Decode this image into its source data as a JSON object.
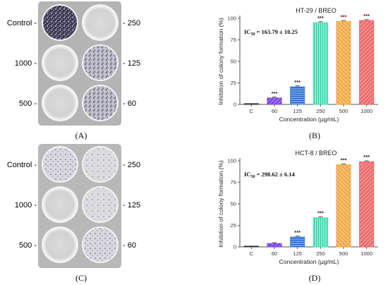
{
  "panels": {
    "A": {
      "caption": "(A)",
      "left_labels": [
        "Control -",
        "1000 -",
        "500 -"
      ],
      "right_labels": [
        "- 250",
        "- 125",
        "- 60"
      ]
    },
    "C": {
      "caption": "(C)",
      "left_labels": [
        "Control -",
        "1000 -",
        "500 -"
      ],
      "right_labels": [
        "- 250",
        "- 125",
        "- 60"
      ]
    }
  },
  "chart_data": [
    {
      "panel": "B",
      "caption": "(B)",
      "type": "bar",
      "title": "HT-29 / BREO",
      "annotation": "IC50 = 163.79 ± 10.25",
      "annotation_sub": "50",
      "annotation_rest": " = 163.79 ± 10.25",
      "xlabel": "Concentration (µg/mL)",
      "ylabel": "Inhibition of colony formation (%)",
      "ylim": [
        0,
        100
      ],
      "yticks": [
        "0",
        "25",
        "50",
        "75",
        "100"
      ],
      "categories": [
        "C",
        "60",
        "125",
        "250",
        "500",
        "1000"
      ],
      "values": [
        1,
        7.5,
        20.5,
        95,
        96.5,
        97.5
      ],
      "significance": [
        "",
        "***",
        "***",
        "***",
        "***",
        "***"
      ],
      "colors": [
        "#333333",
        "#7b3fe4",
        "#3b7fe0",
        "#46e6b8",
        "#f5a540",
        "#ef5c5c"
      ],
      "sig_colors": [
        "",
        "#222222",
        "#222222",
        "#222222",
        "#8b0000",
        "#8b0000"
      ]
    },
    {
      "panel": "D",
      "caption": "(D)",
      "type": "bar",
      "title": "HCT-8 / BREO",
      "annotation": "IC50 = 298.62 ± 6.14",
      "annotation_sub": "50",
      "annotation_rest": " = 298.62 ± 6.14",
      "xlabel": "Concentration (µg/mL)",
      "ylabel": "Inhibition of colony formation (%)",
      "ylim": [
        0,
        100
      ],
      "yticks": [
        "0",
        "25",
        "50",
        "75",
        "100"
      ],
      "categories": [
        "C",
        "60",
        "125",
        "250",
        "500",
        "1000"
      ],
      "values": [
        1,
        4,
        11.5,
        34,
        95.5,
        99
      ],
      "significance": [
        "",
        "",
        "***",
        "***",
        "***",
        "***"
      ],
      "colors": [
        "#333333",
        "#7b3fe4",
        "#3b7fe0",
        "#46e6b8",
        "#f5a540",
        "#ef5c5c"
      ],
      "sig_colors": [
        "",
        "",
        "#222222",
        "#222222",
        "#222222",
        "#222222"
      ]
    }
  ]
}
